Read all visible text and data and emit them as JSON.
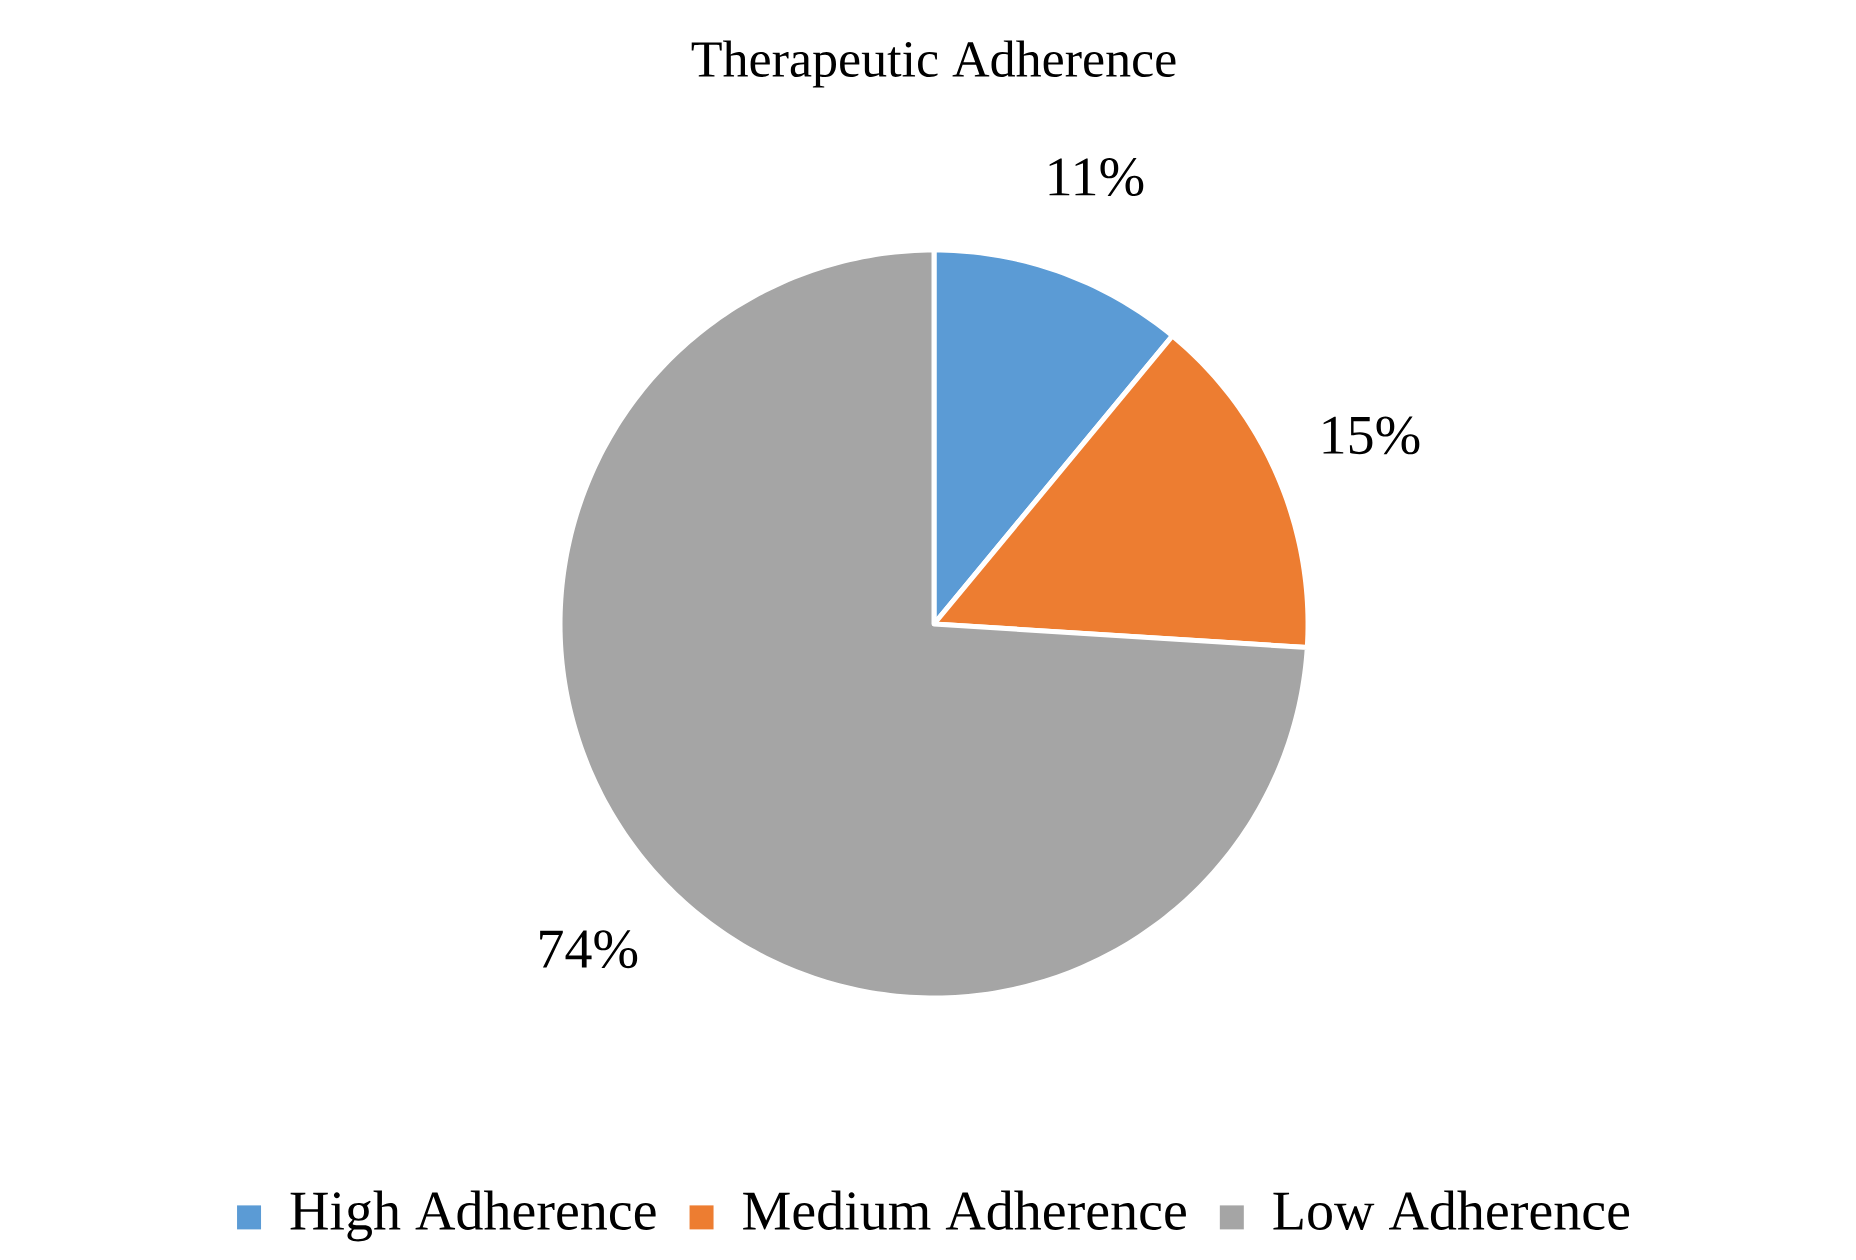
{
  "chart_data": {
    "type": "pie",
    "title": "Therapeutic Adherence",
    "categories": [
      "High Adherence",
      "Medium Adherence",
      "Low Adherence"
    ],
    "values": [
      11,
      15,
      74
    ],
    "colors": [
      "#5b9bd5",
      "#ed7d31",
      "#a5a5a5"
    ],
    "value_labels": [
      "11%",
      "15%",
      "74%"
    ],
    "legend": "bottom"
  }
}
